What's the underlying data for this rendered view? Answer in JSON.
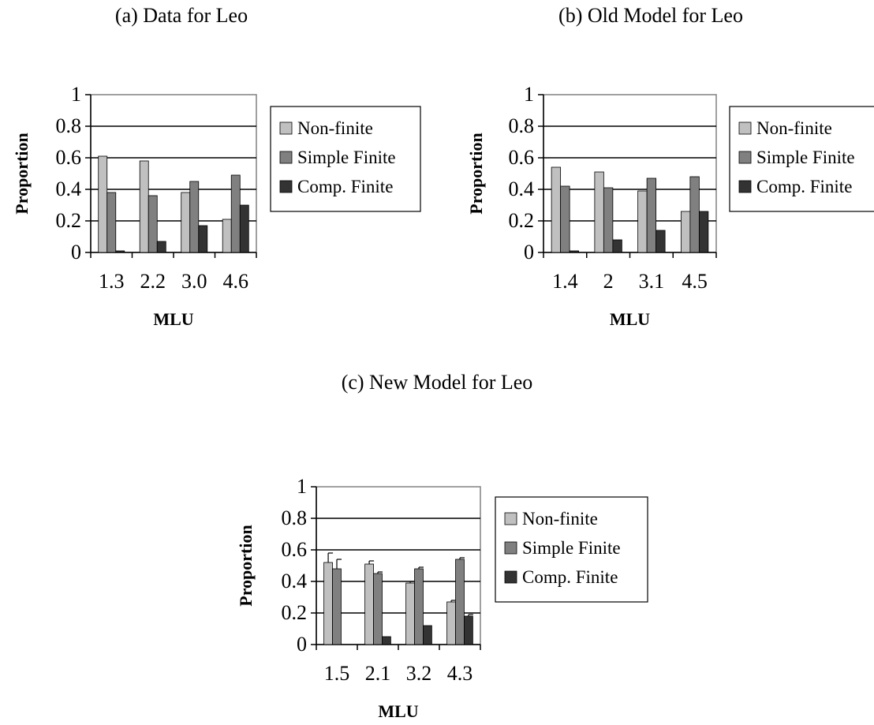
{
  "figure": {
    "panels": [
      {
        "id": "a",
        "title": "(a) Data for Leo"
      },
      {
        "id": "b",
        "title": "(b) Old Model for Leo"
      },
      {
        "id": "c",
        "title": "(c) New Model for Leo"
      }
    ]
  },
  "chart_data": [
    {
      "type": "bar",
      "title": "(a) Data for Leo",
      "xlabel": "MLU",
      "ylabel": "Proportion",
      "ylim": [
        0,
        1
      ],
      "yticks": [
        "0",
        "0.2",
        "0.4",
        "0.6",
        "0.8",
        "1"
      ],
      "categories": [
        "1.3",
        "2.2",
        "3.0",
        "4.6"
      ],
      "grid": "horizontal",
      "legend_position": "right",
      "series": [
        {
          "name": "Non-finite",
          "color": "#c0c0c0",
          "values": [
            0.61,
            0.58,
            0.38,
            0.21
          ]
        },
        {
          "name": "Simple Finite",
          "color": "#808080",
          "values": [
            0.38,
            0.36,
            0.45,
            0.49
          ]
        },
        {
          "name": "Comp. Finite",
          "color": "#333333",
          "values": [
            0.01,
            0.07,
            0.17,
            0.3
          ]
        }
      ]
    },
    {
      "type": "bar",
      "title": "(b) Old Model for Leo",
      "xlabel": "MLU",
      "ylabel": "Proportion",
      "ylim": [
        0,
        1
      ],
      "yticks": [
        "0",
        "0.2",
        "0.4",
        "0.6",
        "0.8",
        "1"
      ],
      "categories": [
        "1.4",
        "2",
        "3.1",
        "4.5"
      ],
      "grid": "horizontal",
      "legend_position": "right",
      "series": [
        {
          "name": "Non-finite",
          "color": "#c0c0c0",
          "values": [
            0.54,
            0.51,
            0.39,
            0.26
          ]
        },
        {
          "name": "Simple Finite",
          "color": "#808080",
          "values": [
            0.42,
            0.41,
            0.47,
            0.48
          ]
        },
        {
          "name": "Comp. Finite",
          "color": "#333333",
          "values": [
            0.01,
            0.08,
            0.14,
            0.26
          ]
        }
      ]
    },
    {
      "type": "bar",
      "title": "(c) New Model for Leo",
      "xlabel": "MLU",
      "ylabel": "Proportion",
      "ylim": [
        0,
        1
      ],
      "yticks": [
        "0",
        "0.2",
        "0.4",
        "0.6",
        "0.8",
        "1"
      ],
      "categories": [
        "1.5",
        "2.1",
        "3.2",
        "4.3"
      ],
      "grid": "horizontal",
      "legend_position": "right",
      "error_bars": true,
      "series": [
        {
          "name": "Non-finite",
          "color": "#c0c0c0",
          "values": [
            0.52,
            0.51,
            0.39,
            0.27
          ],
          "errors": [
            0.06,
            0.02,
            0.01,
            0.01
          ]
        },
        {
          "name": "Simple Finite",
          "color": "#808080",
          "values": [
            0.48,
            0.45,
            0.48,
            0.54
          ],
          "errors": [
            0.06,
            0.01,
            0.01,
            0.01
          ]
        },
        {
          "name": "Comp. Finite",
          "color": "#333333",
          "values": [
            0.0,
            0.05,
            0.12,
            0.18
          ],
          "errors": [
            0.0,
            0.0,
            0.0,
            0.01
          ]
        }
      ]
    }
  ]
}
